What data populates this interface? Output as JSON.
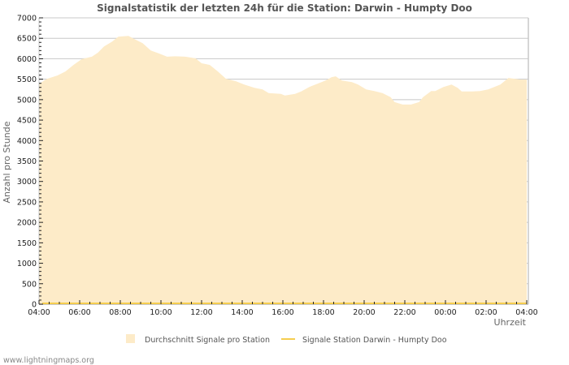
{
  "chart_data": {
    "type": "area",
    "title": "Signalstatistik der letzten 24h für die Station: Darwin - Humpty Doo",
    "xlabel": "Uhrzeit",
    "ylabel": "Anzahl pro Stunde",
    "ylim": [
      0,
      7000
    ],
    "y_ticks": [
      0,
      500,
      1000,
      1500,
      2000,
      2500,
      3000,
      3500,
      4000,
      4500,
      5000,
      5500,
      6000,
      6500,
      7000
    ],
    "x_tick_labels": [
      "04:00",
      "06:00",
      "08:00",
      "10:00",
      "12:00",
      "14:00",
      "16:00",
      "18:00",
      "20:00",
      "22:00",
      "00:00",
      "02:00",
      "04:00"
    ],
    "grid": true,
    "legend_position": "bottom",
    "series": [
      {
        "name": "Durchschnitt Signale pro Station",
        "style": "area",
        "color": "#fdebc8",
        "x_hours": [
          0,
          0.4,
          0.9,
          1.3,
          1.7,
          2.1,
          2.6,
          2.9,
          3.2,
          3.6,
          3.9,
          4.4,
          4.7,
          5.1,
          5.5,
          5.9,
          6.3,
          6.7,
          7.2,
          7.7,
          8.0,
          8.4,
          8.8,
          9.2,
          9.7,
          10.1,
          10.6,
          11.0,
          11.3,
          11.9,
          12.1,
          12.6,
          12.9,
          13.3,
          13.8,
          14.1,
          14.4,
          14.6,
          14.9,
          15.4,
          15.7,
          16.1,
          16.5,
          16.9,
          17.3,
          17.5,
          17.9,
          18.3,
          18.7,
          18.9,
          19.3,
          19.5,
          19.9,
          20.3,
          20.6,
          20.8,
          21.3,
          21.7,
          22.1,
          22.7,
          23.1,
          23.7,
          24.0
        ],
        "values": [
          5390,
          5510,
          5590,
          5690,
          5850,
          5990,
          6050,
          6150,
          6300,
          6420,
          6540,
          6560,
          6480,
          6380,
          6200,
          6130,
          6050,
          6060,
          6050,
          6010,
          5890,
          5850,
          5690,
          5510,
          5450,
          5370,
          5290,
          5250,
          5160,
          5140,
          5100,
          5140,
          5200,
          5310,
          5410,
          5470,
          5550,
          5570,
          5470,
          5430,
          5370,
          5250,
          5210,
          5160,
          5060,
          4940,
          4880,
          4880,
          4940,
          5060,
          5210,
          5210,
          5310,
          5370,
          5290,
          5200,
          5200,
          5210,
          5250,
          5370,
          5530,
          5490,
          5490
        ]
      },
      {
        "name": "Signale Station Darwin - Humpty Doo",
        "style": "line",
        "color": "#f5cd4f",
        "x_hours": [
          0,
          24
        ],
        "values": [
          0,
          0
        ]
      }
    ]
  },
  "footer": {
    "text": "www.lightningmaps.org"
  }
}
